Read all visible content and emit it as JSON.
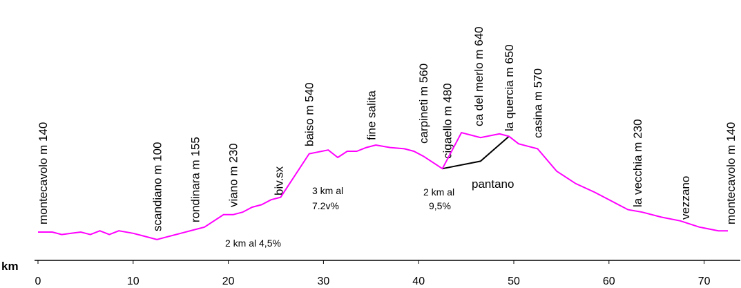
{
  "chart_data": {
    "type": "line",
    "title": "",
    "xlabel": "km",
    "ylabel": "",
    "xlim": [
      0,
      73
    ],
    "xticks": [
      0,
      10,
      20,
      30,
      40,
      50,
      60,
      70
    ],
    "grid": false,
    "colors": {
      "profile": "#ff00ff",
      "variant": "#000000",
      "axis": "#000000"
    },
    "series": [
      {
        "x": [
          0,
          1.5,
          2.5,
          3.5,
          4.5,
          5.5,
          6.5,
          7.5,
          8.5,
          10,
          11,
          12.5,
          13.5,
          15,
          16.5,
          17.5,
          19.5,
          20.5,
          21.5,
          22.5,
          23.5,
          24.5,
          25.5,
          28.5,
          30.5,
          31.5,
          32.5,
          33.5,
          34.5,
          35.5,
          37,
          38.5,
          39.5,
          40.5,
          42.5,
          44.5,
          46.5,
          48.5,
          49.5,
          50.5,
          52.5,
          54.5,
          56.5,
          58.5,
          60.5,
          62,
          63.5,
          65.5,
          67.5,
          69.5,
          71.5,
          72.5
        ],
        "y": [
          0.1,
          0.1,
          0.08,
          0.09,
          0.1,
          0.08,
          0.11,
          0.08,
          0.11,
          0.09,
          0.07,
          0.04,
          0.06,
          0.09,
          0.12,
          0.14,
          0.24,
          0.24,
          0.26,
          0.3,
          0.32,
          0.36,
          0.38,
          0.73,
          0.76,
          0.7,
          0.75,
          0.75,
          0.78,
          0.8,
          0.78,
          0.77,
          0.75,
          0.71,
          0.61,
          0.9,
          0.86,
          0.89,
          0.87,
          0.81,
          0.77,
          0.59,
          0.49,
          0.42,
          0.34,
          0.28,
          0.26,
          0.22,
          0.19,
          0.14,
          0.11,
          0.11
        ]
      }
    ],
    "variant_segment": {
      "x": [
        42.5,
        46.5,
        49.5
      ],
      "y": [
        0.61,
        0.67,
        0.87
      ]
    },
    "place_labels": [
      {
        "km": 0.5,
        "text": "montecavolo m 140"
      },
      {
        "km": 12.5,
        "text": "scandiano  m 100"
      },
      {
        "km": 16.5,
        "text": "rondinara m 155"
      },
      {
        "km": 20.5,
        "text": "viano m 230"
      },
      {
        "km": 25.3,
        "text": "biv.sx"
      },
      {
        "km": 28.5,
        "text": "baiso m 540"
      },
      {
        "km": 35.0,
        "text": "fine salita"
      },
      {
        "km": 40.5,
        "text": "carpineti m 560"
      },
      {
        "km": 43.0,
        "text": "cigaello m 480"
      },
      {
        "km": 46.3,
        "text": "ca del merlo m 640"
      },
      {
        "km": 49.5,
        "text": "la quercia m 650"
      },
      {
        "km": 52.5,
        "text": "casina m 570"
      },
      {
        "km": 63.0,
        "text": "la vecchia m 230"
      },
      {
        "km": 68.0,
        "text": "vezzano"
      },
      {
        "km": 72.8,
        "text": "montecavolo m 140"
      }
    ],
    "annotations": [
      {
        "text": "2 km al 4,5%"
      },
      {
        "text": "3 km al"
      },
      {
        "text": "7.2v%"
      },
      {
        "text": "2  km al"
      },
      {
        "text": "9,5%"
      },
      {
        "text": "pantano"
      }
    ]
  }
}
